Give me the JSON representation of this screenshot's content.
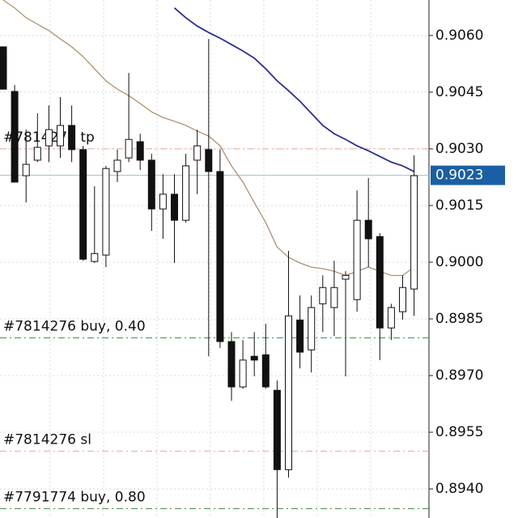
{
  "chart_data": {
    "type": "candlestick",
    "open": [
      0.9057,
      0.90452,
      0.90229,
      0.9027,
      0.90308,
      0.90308,
      0.90362,
      0.90298,
      0.90002,
      0.90019,
      0.9024,
      0.90276,
      0.90319,
      0.9027,
      0.90141,
      0.9018,
      0.90111,
      0.9027,
      0.90298,
      0.9024,
      0.8979,
      0.8967,
      0.89751,
      0.89755,
      0.89661,
      0.89451,
      0.89847,
      0.89768,
      0.8989,
      0.8988,
      0.89955,
      0.89901,
      0.90111,
      0.90068,
      0.89826,
      0.89869,
      0.89929
    ],
    "high": [
      0.9057,
      0.90469,
      0.90351,
      0.90394,
      0.90415,
      0.90437,
      0.90415,
      0.90308,
      0.90201,
      0.90255,
      0.90298,
      0.90501,
      0.9034,
      0.90287,
      0.90233,
      0.90233,
      0.90287,
      0.90351,
      0.90591,
      0.90298,
      0.89815,
      0.89794,
      0.89815,
      0.89837,
      0.89687,
      0.9003,
      0.89912,
      0.89912,
      0.89965,
      0.90004,
      0.89976,
      0.9019,
      0.90223,
      0.90077,
      0.8989,
      0.89965,
      0.90283
    ],
    "low": [
      0.90458,
      0.90212,
      0.90158,
      0.90265,
      0.90265,
      0.90276,
      0.90265,
      0.90004,
      0.89998,
      0.89987,
      0.90212,
      0.90265,
      0.90244,
      0.90083,
      0.90062,
      0.89998,
      0.90105,
      0.9018,
      0.89751,
      0.89773,
      0.89633,
      0.89665,
      0.89698,
      0.89665,
      0.89323,
      0.8943,
      0.89719,
      0.89708,
      0.89815,
      0.89805,
      0.89698,
      0.89869,
      0.89987,
      0.89741,
      0.89794,
      0.89848,
      0.89858
    ],
    "close": [
      0.90458,
      0.90212,
      0.90259,
      0.90304,
      0.90351,
      0.90362,
      0.90298,
      0.90008,
      0.90023,
      0.90248,
      0.9027,
      0.90325,
      0.9027,
      0.90141,
      0.9018,
      0.90111,
      0.90255,
      0.90308,
      0.9024,
      0.8979,
      0.8967,
      0.89741,
      0.89741,
      0.8967,
      0.89451,
      0.89858,
      0.89762,
      0.8988,
      0.89933,
      0.89933,
      0.89965,
      0.90111,
      0.90062,
      0.89826,
      0.8988,
      0.89933,
      0.90229
    ],
    "series": [
      {
        "color": "#2b2e8f",
        "values": [
          null,
          null,
          null,
          null,
          null,
          null,
          null,
          null,
          null,
          null,
          null,
          null,
          null,
          null,
          null,
          0.90673,
          0.90647,
          0.90625,
          0.90608,
          0.90593,
          0.90576,
          0.90559,
          0.9054,
          0.90512,
          0.9048,
          0.90454,
          0.90426,
          0.90394,
          0.90362,
          0.9034,
          0.90325,
          0.90308,
          0.90295,
          0.9028,
          0.90265,
          0.90255,
          0.9024
        ]
      },
      {
        "color": "#a88a6a",
        "values": [
          0.90694,
          0.90673,
          0.90647,
          0.9063,
          0.90613,
          0.90591,
          0.9057,
          0.90544,
          0.90512,
          0.9048,
          0.90458,
          0.90441,
          0.9042,
          0.90398,
          0.90383,
          0.90373,
          0.90362,
          0.90347,
          0.90334,
          0.90308,
          0.90255,
          0.90212,
          0.90158,
          0.90105,
          0.9004,
          0.90013,
          0.89998,
          0.89987,
          0.89983,
          0.89976,
          0.89965,
          0.89976,
          0.89987,
          0.89976,
          0.89965,
          0.89965,
          0.89987
        ]
      }
    ],
    "levels": [
      {
        "label": "#7814276 tp",
        "value": 0.903,
        "color": "#e9a898"
      },
      {
        "label": "#7814276 buy, 0.40",
        "value": 0.898,
        "color": "#3a8a3a"
      },
      {
        "label": "#7814276 sl",
        "value": 0.895,
        "color": "#e9a898"
      },
      {
        "label": "#7791774 buy, 0.80",
        "value": 0.89348,
        "color": "#3a8a3a"
      }
    ],
    "current_price": 0.9023,
    "ylim": [
      0.89323,
      0.90694
    ],
    "yticks": [
      {
        "value": 0.906,
        "label": "0.9060"
      },
      {
        "value": 0.9045,
        "label": "0.9045"
      },
      {
        "value": 0.903,
        "label": "0.9030"
      },
      {
        "value": 0.9015,
        "label": "0.9015"
      },
      {
        "value": 0.9,
        "label": "0.9000"
      },
      {
        "value": 0.8985,
        "label": "0.8985"
      },
      {
        "value": 0.897,
        "label": "0.8970"
      },
      {
        "value": 0.8955,
        "label": "0.8955"
      },
      {
        "value": 0.894,
        "label": "0.8940"
      }
    ],
    "grid": true
  }
}
